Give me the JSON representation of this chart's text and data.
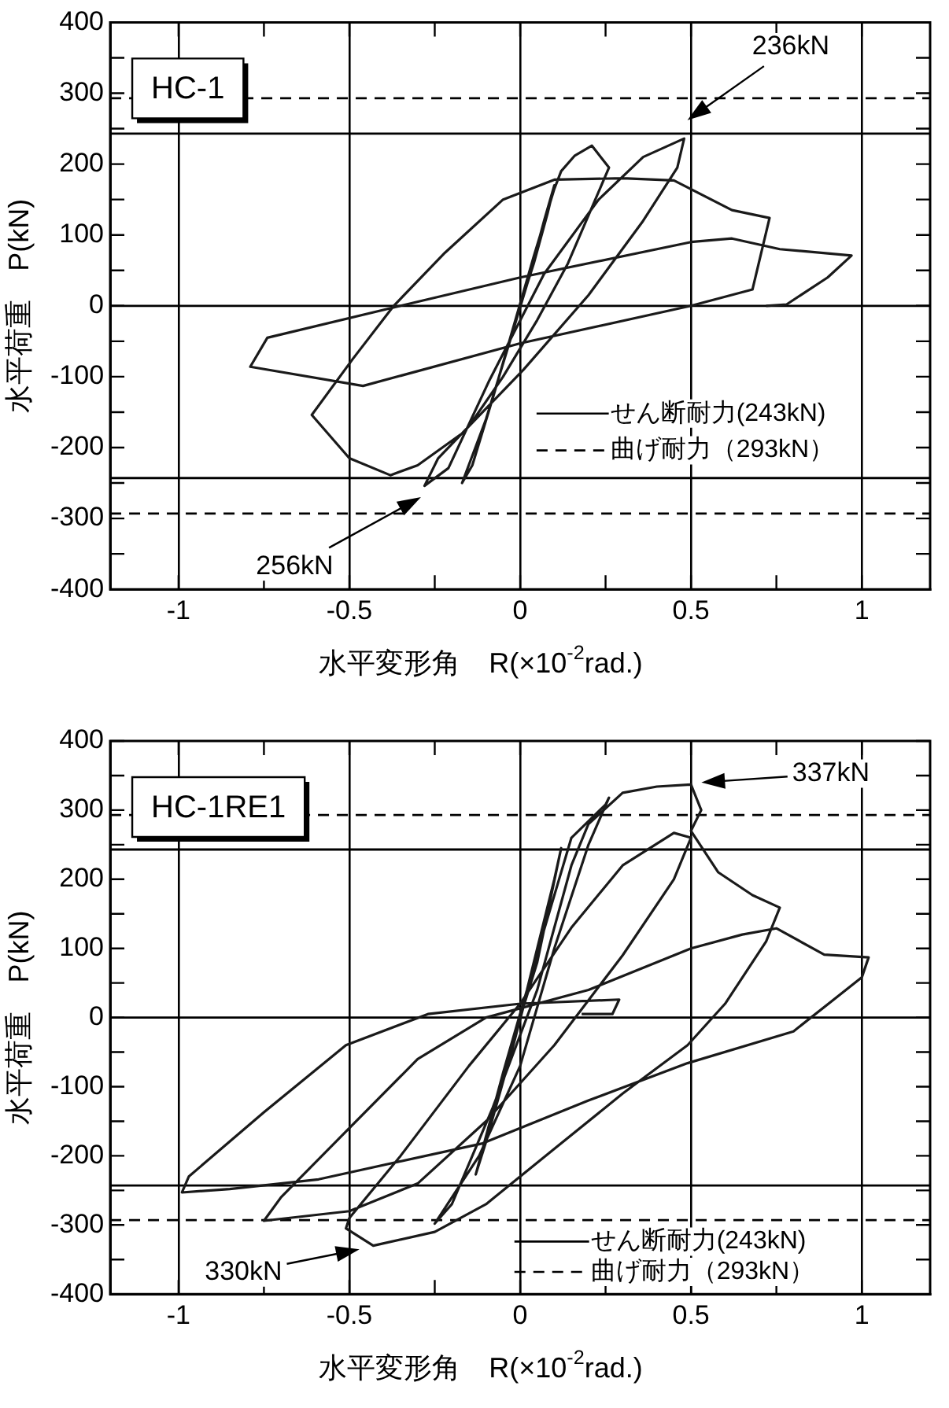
{
  "chart_data": [
    {
      "type": "line",
      "xlabel": "水平変形角　R(×10$^{-2}$rad.)",
      "ylabel": "水平荷重　P(kN)",
      "xlim": [
        -1.2,
        1.2
      ],
      "ylim": [
        -400,
        400
      ],
      "xticks": [
        -1,
        {
          "value": -0.75,
          "label": null
        },
        -0.5,
        {
          "value": -0.25,
          "label": null
        },
        0,
        {
          "value": 0.25,
          "label": null
        },
        0.5,
        {
          "value": 0.75,
          "label": null
        },
        1
      ],
      "yticks": [
        -400,
        {
          "value": -350,
          "label": null
        },
        -300,
        {
          "value": -250,
          "label": null
        },
        -200,
        {
          "value": -150,
          "label": null
        },
        -100,
        {
          "value": -50,
          "label": null
        },
        0,
        {
          "value": 50,
          "label": null
        },
        100,
        {
          "value": 150,
          "label": null
        },
        200,
        {
          "value": 250,
          "label": null
        },
        300,
        {
          "value": 350,
          "label": null
        },
        400
      ],
      "grid": "x",
      "series": [
        {
          "color": "#1a1a1a",
          "x": [
            0,
            0.04,
            0.08,
            0.1,
            0.07,
            0.02,
            -0.03,
            -0.1,
            -0.17,
            -0.14,
            -0.08,
            -0.02,
            0.04,
            0.1,
            0.12,
            0.16,
            0.21,
            0.26,
            0.22,
            0.14,
            0.05,
            -0.05,
            -0.15,
            -0.24,
            -0.28,
            -0.21,
            -0.09,
            0.07,
            0.23,
            0.36,
            0.48,
            0.46,
            0.36,
            0.2,
            0.01,
            -0.17,
            -0.3,
            -0.38,
            -0.5,
            -0.61,
            -0.49,
            -0.37,
            -0.22,
            -0.05,
            0.1,
            0.3,
            0.45,
            0.62,
            0.73,
            0.68,
            0.5,
            0,
            -0.46,
            -0.79,
            -0.74,
            -0.35,
            0,
            0.5,
            0.62,
            0.76,
            0.97,
            0.9,
            0.78,
            0.72
          ],
          "values": [
            0,
            60,
            130,
            170,
            120,
            30,
            -50,
            -160,
            -250,
            -225,
            -130,
            -30,
            70,
            165,
            190,
            212,
            226,
            195,
            150,
            60,
            -20,
            -100,
            -170,
            -215,
            -254,
            -229,
            -105,
            45,
            150,
            210,
            236,
            195,
            120,
            15,
            -90,
            -180,
            -225,
            -239,
            -215,
            -154,
            -75,
            0,
            75,
            150,
            178,
            180,
            177,
            135,
            124,
            23,
            0,
            -53,
            -113,
            -86,
            -45,
            0,
            40,
            90,
            95,
            80,
            71,
            40,
            2,
            0
          ]
        }
      ],
      "ref_lines": [
        {
          "axis": "y",
          "value": 0
        },
        {
          "axis": "y",
          "value": 243,
          "label": "せん断耐力(243kN)",
          "line_style": "solid"
        },
        {
          "axis": "y",
          "value": -243,
          "line_style": "solid"
        },
        {
          "axis": "y",
          "value": 293,
          "label": "曲げ耐力（293kN）",
          "line_style": "dashed"
        },
        {
          "axis": "y",
          "value": -293,
          "line_style": "dashed"
        }
      ],
      "legend": "bottom right",
      "annotations": [
        "HC-1",
        "236kN",
        "256kN"
      ]
    },
    {
      "type": "line",
      "xlabel": "水平変形角　R(×10$^{-2}$rad.)",
      "ylabel": "水平荷重　P(kN)",
      "xlim": [
        -1.2,
        1.2
      ],
      "ylim": [
        -400,
        400
      ],
      "xticks": [
        -1,
        {
          "value": -0.75,
          "label": null
        },
        -0.5,
        {
          "value": -0.25,
          "label": null
        },
        0,
        {
          "value": 0.25,
          "label": null
        },
        0.5,
        {
          "value": 0.75,
          "label": null
        },
        1
      ],
      "yticks": [
        -400,
        {
          "value": -350,
          "label": null
        },
        -300,
        {
          "value": -250,
          "label": null
        },
        -200,
        {
          "value": -150,
          "label": null
        },
        -100,
        {
          "value": -50,
          "label": null
        },
        0,
        {
          "value": 50,
          "label": null
        },
        100,
        {
          "value": 150,
          "label": null
        },
        200,
        {
          "value": 250,
          "label": null
        },
        300,
        {
          "value": 350,
          "label": null
        },
        400
      ],
      "grid": "x",
      "series": [
        {
          "color": "#1a1a1a",
          "x": [
            0,
            0.05,
            0.12,
            0.1,
            0.02,
            -0.05,
            -0.13,
            -0.1,
            -0.02,
            0.06,
            0.15,
            0.25,
            0.26,
            0.2,
            0.1,
            0,
            -0.12,
            -0.25,
            -0.2,
            -0.08,
            0.05,
            0.15,
            0.2,
            0.3,
            0.4,
            0.5,
            0.53,
            0.5,
            0.58,
            0.68,
            0.76,
            0.72,
            0.6,
            0.49,
            0.3,
            0.1,
            -0.1,
            -0.25,
            -0.43,
            -0.51,
            -0.5,
            -0.35,
            -0.15,
            0,
            0.15,
            0.3,
            0.45,
            0.5,
            0.45,
            0.3,
            0.1,
            -0.1,
            -0.3,
            -0.5,
            -0.75,
            -0.7,
            -0.5,
            -0.3,
            -0.1,
            0.2,
            0.5,
            0.65,
            0.75,
            0.89,
            1.02,
            1,
            0.8,
            0.49,
            0.2,
            -0.11,
            -0.59,
            -0.85,
            -0.99,
            -0.97,
            -0.75,
            -0.51,
            -0.27,
            0,
            0.29,
            0.27,
            0.18
          ],
          "values": [
            0,
            80,
            245,
            200,
            40,
            -80,
            -227,
            -180,
            -40,
            110,
            260,
            308,
            318,
            250,
            100,
            -70,
            -200,
            -298,
            -270,
            -130,
            40,
            220,
            280,
            325,
            334,
            337,
            300,
            270,
            210,
            177,
            159,
            110,
            20,
            -40,
            -110,
            -190,
            -270,
            -310,
            -330,
            -305,
            -290,
            -200,
            -70,
            20,
            130,
            220,
            267,
            260,
            200,
            90,
            -40,
            -150,
            -240,
            -280,
            -294,
            -260,
            -160,
            -60,
            0,
            40,
            100,
            120,
            129,
            91,
            87,
            58,
            -20,
            -66,
            -120,
            -182,
            -234,
            -248,
            -253,
            -230,
            -137,
            -40,
            5,
            20,
            26,
            5,
            5
          ]
        }
      ],
      "ref_lines": [
        {
          "axis": "y",
          "value": 0
        },
        {
          "axis": "y",
          "value": 243,
          "label": "せん断耐力(243kN)",
          "line_style": "solid"
        },
        {
          "axis": "y",
          "value": -243,
          "line_style": "solid"
        },
        {
          "axis": "y",
          "value": 293,
          "label": "曲げ耐力（293kN）",
          "line_style": "dashed"
        },
        {
          "axis": "y",
          "value": -293,
          "line_style": "dashed"
        }
      ],
      "legend": "bottom right",
      "annotations": [
        "HC-1RE1",
        "337kN",
        "330kN"
      ]
    }
  ]
}
